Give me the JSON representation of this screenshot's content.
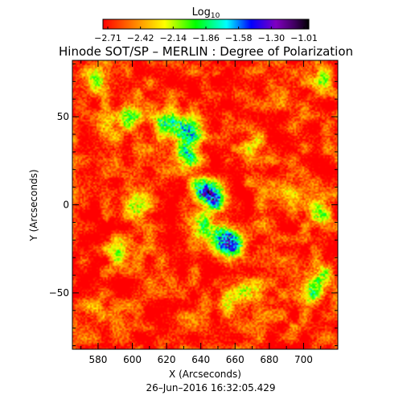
{
  "chart_data": {
    "type": "heatmap",
    "title": "Hinode SOT/SP – MERLIN : Degree of Polarization",
    "xlabel": "X (Arcseconds)",
    "ylabel": "Y (Arcseconds)",
    "footer": "26–Jun–2016 16:32:05.429",
    "xlim": [
      565,
      720
    ],
    "ylim": [
      -82,
      82
    ],
    "x_ticks": [
      580,
      600,
      620,
      640,
      660,
      680,
      700
    ],
    "x_tick_labels": [
      "580",
      "600",
      "620",
      "640",
      "660",
      "680",
      "700"
    ],
    "y_ticks": [
      -50,
      0,
      50
    ],
    "y_tick_labels": [
      "−50",
      "0",
      "50"
    ],
    "colorbar": {
      "label_base": "Log",
      "label_sub": "10",
      "range": [
        -2.71,
        -1.01
      ],
      "colormap": "rainbow (red → yellow → green → cyan → blue → purple → black)",
      "tick_labels": [
        "−2.71",
        "−2.42",
        "−2.14",
        "−1.86",
        "−1.58",
        "−1.30",
        "−1.01"
      ]
    },
    "background_level": -2.65,
    "features": [
      {
        "x": 648,
        "y": 4,
        "strength": 0.95
      },
      {
        "x": 640,
        "y": 9,
        "strength": 0.8
      },
      {
        "x": 632,
        "y": 28,
        "strength": 0.75
      },
      {
        "x": 628,
        "y": 44,
        "strength": 0.7
      },
      {
        "x": 618,
        "y": 47,
        "strength": 0.65
      },
      {
        "x": 658,
        "y": -22,
        "strength": 0.9
      },
      {
        "x": 651,
        "y": -17,
        "strength": 0.7
      },
      {
        "x": 640,
        "y": -12,
        "strength": 0.55
      },
      {
        "x": 636,
        "y": 42,
        "strength": 0.7
      },
      {
        "x": 592,
        "y": -27,
        "strength": 0.5
      },
      {
        "x": 598,
        "y": 51,
        "strength": 0.55
      },
      {
        "x": 603,
        "y": 0,
        "strength": 0.5
      },
      {
        "x": 668,
        "y": -49,
        "strength": 0.55
      },
      {
        "x": 704,
        "y": -50,
        "strength": 0.6
      },
      {
        "x": 710,
        "y": -40,
        "strength": 0.5
      },
      {
        "x": 709,
        "y": -5,
        "strength": 0.55
      },
      {
        "x": 711,
        "y": 72,
        "strength": 0.5
      },
      {
        "x": 580,
        "y": 70,
        "strength": 0.5
      },
      {
        "x": 586,
        "y": 45,
        "strength": 0.35
      },
      {
        "x": 672,
        "y": 35,
        "strength": 0.35
      },
      {
        "x": 656,
        "y": -55,
        "strength": 0.35
      },
      {
        "x": 690,
        "y": 10,
        "strength": 0.3
      },
      {
        "x": 580,
        "y": -60,
        "strength": 0.3
      },
      {
        "x": 676,
        "y": -10,
        "strength": 0.3
      }
    ]
  }
}
